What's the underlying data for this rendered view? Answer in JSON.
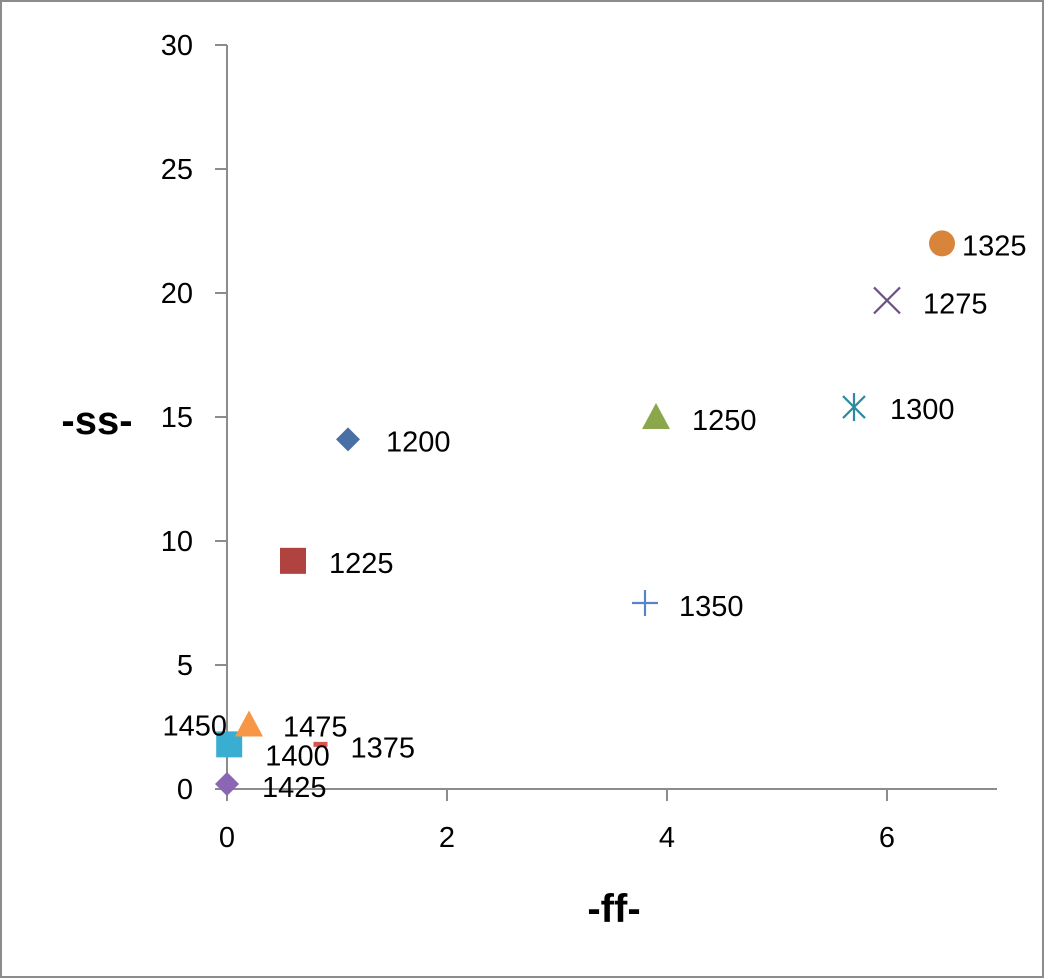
{
  "chart_data": {
    "type": "scatter",
    "xlabel": "-ff-",
    "ylabel": "-ss-",
    "xlim": [
      0,
      7
    ],
    "ylim": [
      0,
      30
    ],
    "xticks": [
      0,
      2,
      4,
      6
    ],
    "yticks": [
      0,
      5,
      10,
      15,
      20,
      25,
      30
    ],
    "grid": false,
    "legend": "none",
    "series": [
      {
        "label": "1200",
        "x": 1.1,
        "y": 14.1,
        "marker": "diamond",
        "color": "#4a6fa5"
      },
      {
        "label": "1225",
        "x": 0.6,
        "y": 9.2,
        "marker": "square",
        "color": "#b0433f"
      },
      {
        "label": "1250",
        "x": 3.9,
        "y": 15.0,
        "marker": "triangle",
        "color": "#8aa84b"
      },
      {
        "label": "1275",
        "x": 6.0,
        "y": 19.7,
        "marker": "x",
        "color": "#6a5287"
      },
      {
        "label": "1300",
        "x": 5.7,
        "y": 15.4,
        "marker": "star",
        "color": "#2f8aa0"
      },
      {
        "label": "1325",
        "x": 6.5,
        "y": 22.0,
        "marker": "circle",
        "color": "#d8853b"
      },
      {
        "label": "1350",
        "x": 3.8,
        "y": 7.5,
        "marker": "plus",
        "color": "#5a84c8"
      },
      {
        "label": "1375",
        "x": 0.85,
        "y": 1.8,
        "marker": "dash",
        "color": "#d9534f"
      },
      {
        "label": "1400",
        "x": 0.02,
        "y": 1.8,
        "marker": "square",
        "color": "#3aaed0"
      },
      {
        "label": "1425",
        "x": 0.0,
        "y": 0.2,
        "marker": "diamond",
        "color": "#8a66b5"
      },
      {
        "label": "1450",
        "x": 0.0,
        "y": 2.0,
        "marker": "none",
        "color": "#000000"
      },
      {
        "label": "1475",
        "x": 0.2,
        "y": 2.6,
        "marker": "triangle",
        "color": "#f79646"
      }
    ]
  }
}
